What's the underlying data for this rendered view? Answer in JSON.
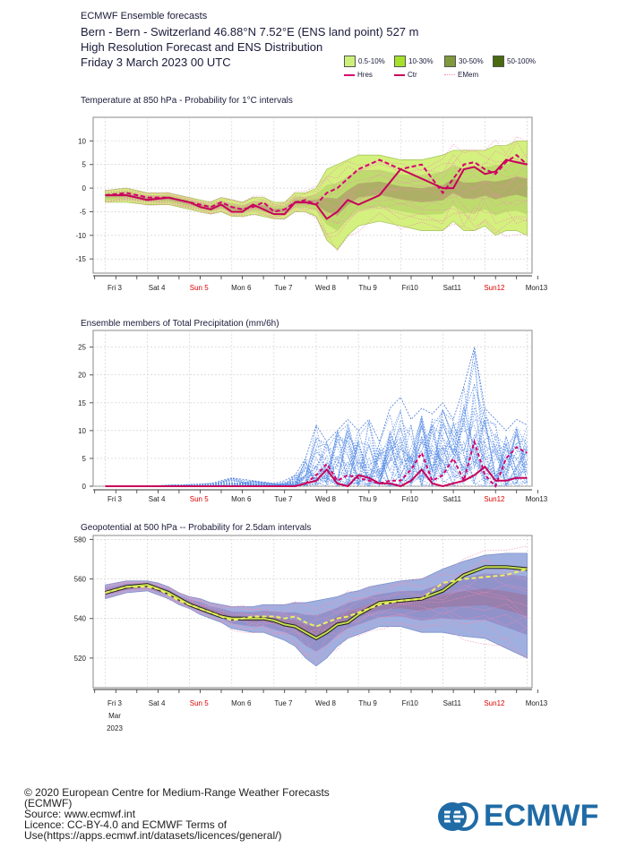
{
  "header": {
    "source_line": "ECMWF Ensemble forecasts",
    "location_line": "Bern - Bern - Switzerland 46.88°N 7.52°E (ENS land point) 527 m",
    "product_line": "High Resolution Forecast and ENS Distribution",
    "date_line": "Friday 3 March 2023 00 UTC"
  },
  "legend": {
    "bands": [
      {
        "label": "0.5-10%",
        "color": "#ccf07a"
      },
      {
        "label": "10-30%",
        "color": "#a6e02a"
      },
      {
        "label": "30-50%",
        "color": "#7f9a3c"
      },
      {
        "label": "50-100%",
        "color": "#4a6a10"
      }
    ],
    "lines": [
      {
        "label": "Hres",
        "color": "#d6006e",
        "style": "dashed"
      },
      {
        "label": "Ctr",
        "color": "#c8005a",
        "style": "solid"
      },
      {
        "label": "EMem",
        "color": "#f08cb4",
        "style": "dotted"
      }
    ]
  },
  "x_axis": {
    "day_labels": [
      "Fri 3",
      "Sat 4",
      "Sun 5",
      "Mon 6",
      "Tue 7",
      "Wed 8",
      "Thu 9",
      "Fri10",
      "Sat11",
      "Sun12",
      "Mon13"
    ],
    "weekend_color": "#dd0000",
    "weekend_days": [
      "Sun 5",
      "Sun12"
    ],
    "month_label": "Mar",
    "year_label": "2023"
  },
  "chart_data": [
    {
      "type": "line",
      "title": "Temperature at 850 hPa - Probability for 1°C intervals",
      "xlabel": "",
      "ylabel": "",
      "ylim": [
        -18,
        15
      ],
      "yticks": [
        10,
        5,
        0,
        -5,
        -10,
        -15
      ],
      "x_days": [
        0,
        0.5,
        1,
        1.5,
        2,
        2.25,
        2.5,
        2.75,
        3,
        3.25,
        3.5,
        3.75,
        4,
        4.25,
        4.5,
        4.75,
        5,
        5.25,
        5.5,
        5.75,
        6,
        6.5,
        7,
        7.5,
        8,
        8.25,
        8.5,
        8.75,
        9,
        9.25,
        9.5,
        9.75,
        10
      ],
      "series": [
        {
          "name": "Hres",
          "values": [
            -1.5,
            -1,
            -2,
            -2,
            -3,
            -3.5,
            -4,
            -3,
            -4,
            -4.5,
            -4,
            -3,
            -5,
            -4.5,
            -3,
            -2.5,
            -3.5,
            -1,
            0,
            2,
            4,
            6,
            4,
            5,
            -1,
            2,
            5,
            5.5,
            4,
            3,
            5.5,
            7,
            5
          ]
        },
        {
          "name": "Ctr",
          "values": [
            -1.5,
            -1.5,
            -2.5,
            -2,
            -3,
            -4,
            -4.5,
            -3.5,
            -5,
            -5,
            -3.5,
            -4.5,
            -5.5,
            -5.5,
            -3,
            -3,
            -3.5,
            -6.5,
            -5,
            -2.5,
            -3.5,
            -1.5,
            4,
            2,
            0,
            0,
            4,
            4.5,
            3,
            3.5,
            6,
            5.5,
            5
          ]
        },
        {
          "name": "ENS upper envelope",
          "values": [
            -0.5,
            0,
            -1,
            -1,
            -2,
            -2.5,
            -3,
            -2,
            -2.5,
            -3,
            -2,
            -2,
            -3,
            -3,
            -1,
            -1,
            0,
            4,
            5,
            6,
            7,
            7,
            6,
            6,
            7,
            8,
            8,
            8,
            8,
            9,
            9,
            10,
            10
          ]
        },
        {
          "name": "ENS lower envelope",
          "values": [
            -3,
            -3,
            -3.5,
            -3.5,
            -4.5,
            -5,
            -5.5,
            -5,
            -6,
            -6,
            -5.5,
            -6,
            -6.5,
            -6.5,
            -5,
            -5,
            -6,
            -11,
            -13,
            -10,
            -8,
            -7,
            -8,
            -9,
            -9,
            -7,
            -9,
            -9,
            -8,
            -10,
            -9,
            -9,
            -10
          ]
        }
      ]
    },
    {
      "type": "line",
      "title": "Ensemble members of Total Precipitation (mm/6h)",
      "xlabel": "",
      "ylabel": "",
      "ylim": [
        0,
        28
      ],
      "yticks": [
        25,
        20,
        15,
        10,
        5,
        0
      ],
      "x_days": [
        0,
        0.5,
        1,
        1.5,
        2,
        2.5,
        3,
        3.5,
        4,
        4.25,
        4.5,
        4.75,
        5,
        5.25,
        5.5,
        5.75,
        6,
        6.25,
        6.5,
        6.75,
        7,
        7.25,
        7.5,
        7.75,
        8,
        8.25,
        8.5,
        8.75,
        9,
        9.25,
        9.5,
        9.75,
        10
      ],
      "series": [
        {
          "name": "Hres",
          "values": [
            0,
            0,
            0,
            0,
            0,
            0,
            0,
            0,
            0,
            0,
            0,
            0.5,
            2,
            4,
            1,
            2,
            1.5,
            1,
            0.5,
            1,
            1,
            3,
            6,
            1,
            2,
            5,
            1,
            8,
            2,
            0,
            5,
            7,
            6
          ]
        },
        {
          "name": "Ctr",
          "values": [
            0,
            0,
            0,
            0,
            0,
            0,
            0,
            0,
            0,
            0,
            0,
            0.5,
            1,
            3,
            0.5,
            0,
            2,
            1.5,
            0.5,
            0.5,
            0,
            1,
            3,
            0.5,
            0,
            0.5,
            1,
            2,
            3.5,
            1,
            1,
            1.5,
            1.5
          ]
        },
        {
          "name": "ENS max",
          "values": [
            0,
            0,
            0,
            0.2,
            0.3,
            0.5,
            1.5,
            1,
            0.5,
            1,
            2,
            5,
            11,
            8,
            10,
            12,
            10,
            12,
            8,
            14,
            16,
            12,
            14,
            13,
            15,
            12,
            18,
            25,
            14,
            12,
            10,
            12,
            11
          ]
        }
      ]
    },
    {
      "type": "line",
      "title": "Geopotential at 500 hPa -- Probability for 2.5dam intervals",
      "xlabel": "",
      "ylabel": "",
      "ylim": [
        505,
        582
      ],
      "yticks": [
        580,
        560,
        540,
        520
      ],
      "x_days": [
        0,
        0.5,
        1,
        1.25,
        1.5,
        1.75,
        2,
        2.25,
        2.5,
        2.75,
        3,
        3.25,
        3.5,
        3.75,
        4,
        4.25,
        4.5,
        4.75,
        5,
        5.25,
        5.5,
        5.75,
        6,
        6.25,
        6.5,
        7,
        7.5,
        8,
        8.5,
        9,
        9.5,
        10
      ],
      "series": [
        {
          "name": "Hres",
          "values": [
            553,
            556,
            556,
            555,
            552,
            549,
            547,
            545,
            543,
            541,
            539,
            540,
            541,
            541,
            541,
            540,
            541,
            538,
            536,
            538,
            540,
            541,
            543,
            545,
            547,
            549,
            550,
            558,
            560,
            561,
            562,
            565
          ]
        },
        {
          "name": "Ctr",
          "values": [
            553,
            556,
            557,
            555,
            553,
            550,
            547,
            545,
            543,
            541,
            540,
            540,
            540,
            540,
            539,
            537,
            536,
            533,
            530,
            533,
            537,
            538,
            542,
            545,
            548,
            549,
            550,
            554,
            562,
            566,
            566,
            565
          ]
        },
        {
          "name": "ENS upper envelope",
          "values": [
            557,
            559,
            559,
            558,
            556,
            553,
            551,
            550,
            548,
            547,
            546,
            546,
            546,
            547,
            547,
            547,
            548,
            548,
            549,
            550,
            551,
            553,
            554,
            556,
            557,
            559,
            560,
            565,
            569,
            572,
            573,
            573
          ]
        },
        {
          "name": "ENS lower envelope",
          "values": [
            550,
            553,
            554,
            552,
            550,
            547,
            545,
            542,
            540,
            538,
            535,
            534,
            533,
            533,
            531,
            529,
            526,
            520,
            516,
            520,
            526,
            530,
            532,
            534,
            536,
            536,
            533,
            533,
            531,
            530,
            525,
            520
          ]
        }
      ]
    }
  ],
  "footer": {
    "copyright": "© 2020 European Centre for Medium-Range Weather Forecasts (ECMWF)",
    "source": "Source: www.ecmwf.int",
    "licence": "Licence: CC-BY-4.0 and ECMWF Terms of Use(https://apps.ecmwf.int/datasets/licences/general/)",
    "logo_text": "ECMWF",
    "logo_color": "#1f6ba6"
  }
}
